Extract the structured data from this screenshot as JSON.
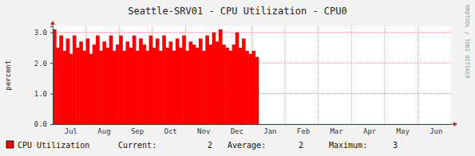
{
  "chart_data": {
    "type": "area",
    "title": "Seattle-SRV01 - CPU Utilization - CPU0",
    "y_label": "percent",
    "side_text": "RRDTOOL / TOBI OETIKER",
    "categories": [
      null,
      null,
      null,
      null,
      null,
      "Jul",
      null,
      null,
      null,
      null,
      null,
      null,
      null,
      null,
      null,
      "Aug",
      null,
      null,
      null,
      null,
      null,
      null,
      null,
      null,
      null,
      "Sep",
      null,
      null,
      null,
      null,
      null,
      null,
      null,
      null,
      null,
      "Oct",
      null,
      null,
      null,
      null,
      null,
      null,
      null,
      null,
      null,
      "Nov",
      null,
      null,
      null,
      null,
      null,
      null,
      null,
      null,
      null,
      "Dec",
      null,
      null,
      null,
      null,
      null,
      null,
      null,
      null,
      null,
      "Jan",
      null,
      null,
      null,
      null,
      null,
      null,
      null,
      null,
      null,
      "Feb",
      null,
      null,
      null,
      null,
      null,
      null,
      null,
      null,
      null,
      "Mar",
      null,
      null,
      null,
      null,
      null,
      null,
      null,
      null,
      null,
      "Apr",
      null,
      null,
      null,
      null,
      null,
      null,
      null,
      null,
      null,
      "May",
      null,
      null,
      null,
      null,
      null,
      null,
      null,
      null,
      null,
      "Jun",
      null,
      null,
      null,
      null
    ],
    "series": [
      {
        "name": "CPU Utilization",
        "color": "#ff0000",
        "values": [
          3.1,
          2.5,
          2.9,
          2.4,
          2.8,
          2.3,
          2.9,
          2.5,
          2.7,
          2.4,
          2.8,
          2.3,
          2.6,
          2.9,
          2.4,
          2.7,
          2.5,
          2.9,
          2.4,
          2.6,
          2.9,
          2.4,
          2.7,
          2.5,
          2.9,
          2.4,
          2.8,
          2.6,
          2.4,
          2.9,
          2.5,
          2.8,
          2.4,
          2.9,
          2.5,
          2.7,
          2.4,
          2.8,
          2.5,
          2.9,
          2.4,
          2.7,
          2.6,
          2.5,
          2.8,
          2.4,
          2.9,
          2.6,
          3.0,
          2.7,
          3.1,
          2.6,
          2.5,
          2.4,
          2.6,
          3.0,
          2.5,
          2.8,
          2.4,
          2.3,
          2.4,
          2.2,
          null,
          null,
          null,
          null,
          null,
          null,
          null,
          null,
          null,
          null,
          null,
          null,
          null,
          null,
          null,
          null,
          null,
          null,
          null,
          null,
          null,
          null,
          null,
          null,
          null,
          null,
          null,
          null,
          null,
          null,
          null,
          null,
          null,
          null,
          null,
          null,
          null,
          null,
          null,
          null,
          null,
          null,
          null,
          null,
          null,
          null,
          null,
          null,
          null,
          null,
          null,
          null,
          null,
          null,
          null,
          null,
          null,
          null
        ]
      }
    ],
    "stats": [
      {
        "label": "Current:",
        "value": 2
      },
      {
        "label": "Average:",
        "value": 2
      },
      {
        "label": "Maximum:",
        "value": 3
      }
    ],
    "ylim": [
      0,
      3.2
    ],
    "yticks": [
      {
        "value": 0,
        "label": "0.0"
      },
      {
        "value": 1,
        "label": "1.0"
      },
      {
        "value": 2,
        "label": "2.0"
      },
      {
        "value": 3,
        "label": "3.0"
      }
    ],
    "grid": true,
    "legend": "bottom"
  }
}
